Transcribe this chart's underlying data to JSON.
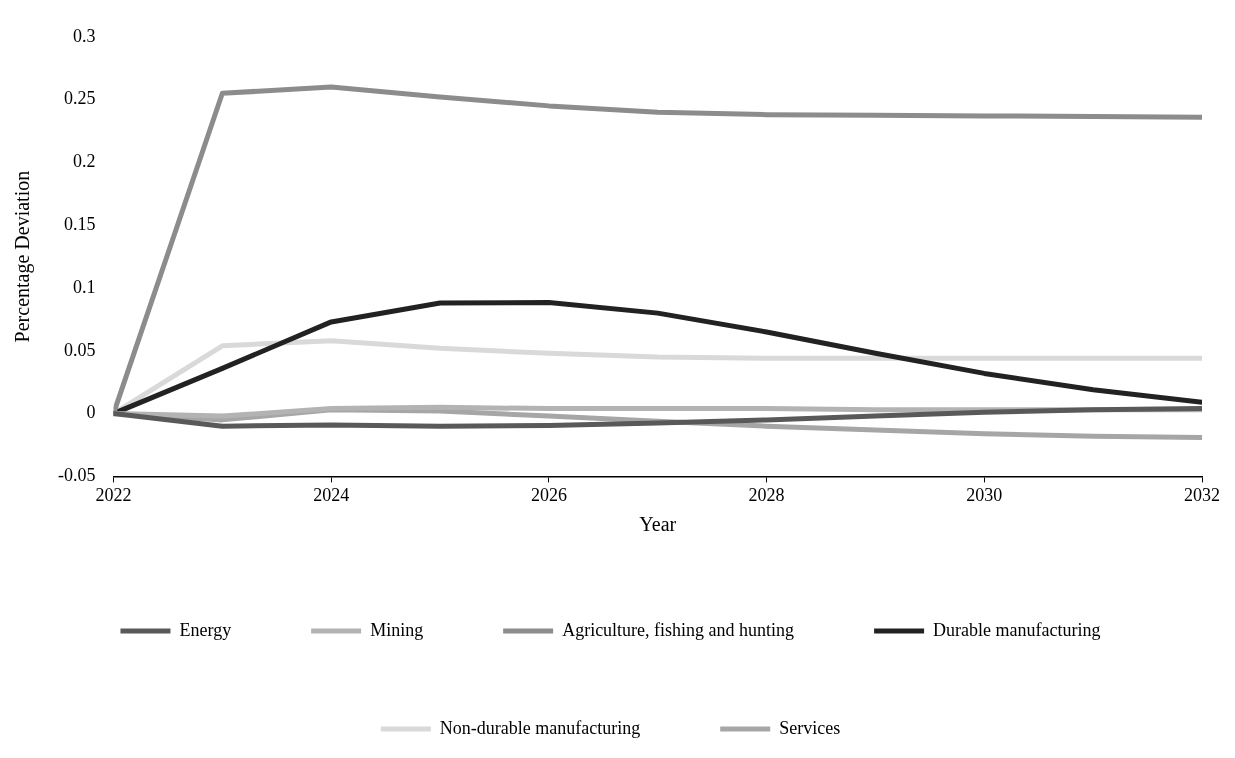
{
  "chart_data": {
    "type": "line",
    "xlabel": "Year",
    "ylabel": "Percentage Deviation",
    "x": [
      2022,
      2023,
      2024,
      2025,
      2026,
      2027,
      2028,
      2029,
      2030,
      2031,
      2032
    ],
    "xlim": [
      2022,
      2032
    ],
    "xticks": [
      2022,
      2024,
      2026,
      2028,
      2030,
      2032
    ],
    "ylim": [
      -0.05,
      0.3
    ],
    "yticks": [
      {
        "value": -0.05,
        "label": "-0.05"
      },
      0,
      0.05,
      0.1,
      0.15,
      0.2,
      0.25,
      0.3
    ],
    "grid": false,
    "legend": "bottom",
    "marker": "none",
    "line_style": "solid",
    "series": [
      {
        "name": "Energy",
        "color": "#595959",
        "values": [
          0,
          -0.01,
          -0.009,
          -0.01,
          -0.0095,
          -0.0075,
          -0.005,
          -0.002,
          0.001,
          0.003,
          0.004
        ]
      },
      {
        "name": "Mining",
        "color": "#b3b3b3",
        "values": [
          0,
          -0.002,
          0.004,
          0.005,
          0.004,
          0.004,
          0.004,
          0.003,
          0.003,
          0.003,
          0.003
        ]
      },
      {
        "name": "Agriculture, fishing and hunting",
        "color": "#8c8c8c",
        "values": [
          0,
          0.255,
          0.26,
          0.252,
          0.245,
          0.24,
          0.238,
          0.2375,
          0.237,
          0.2365,
          0.236
        ]
      },
      {
        "name": "Durable manufacturing",
        "color": "#222222",
        "values": [
          0,
          0.036,
          0.073,
          0.088,
          0.0885,
          0.08,
          0.065,
          0.048,
          0.032,
          0.019,
          0.009
        ]
      },
      {
        "name": "Non-durable manufacturing",
        "color": "#d9d9d9",
        "values": [
          0,
          0.054,
          0.058,
          0.052,
          0.048,
          0.045,
          0.044,
          0.044,
          0.044,
          0.044,
          0.044
        ]
      },
      {
        "name": "Services",
        "color": "#a6a6a6",
        "values": [
          0,
          -0.005,
          0.003,
          0.002,
          -0.002,
          -0.006,
          -0.01,
          -0.013,
          -0.016,
          -0.018,
          -0.019
        ]
      }
    ]
  }
}
